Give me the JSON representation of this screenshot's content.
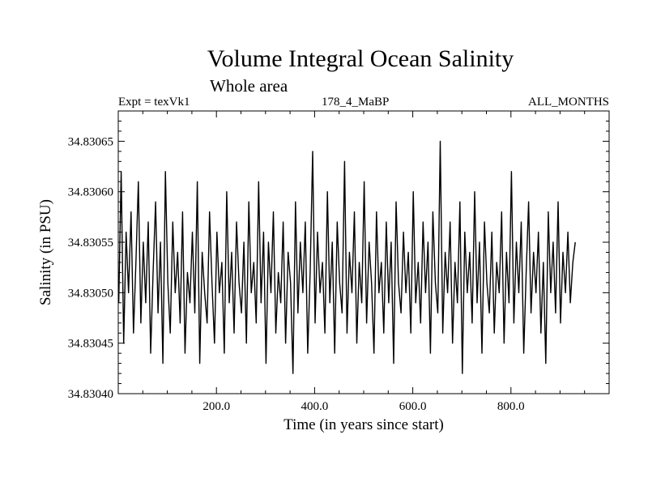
{
  "header": {
    "title": "Volume Integral Ocean Salinity",
    "subtitle": "Whole area",
    "experiment": "Expt = texVk1",
    "run": "178_4_MaBP",
    "period": "ALL_MONTHS"
  },
  "chart_data": {
    "type": "line",
    "title": "Volume Integral Ocean Salinity",
    "subtitle": "Whole area",
    "xlabel": "Time (in years since start)",
    "ylabel": "Salinity (in PSU)",
    "xlim": [
      0,
      1000
    ],
    "ylim": [
      34.8304,
      34.83068
    ],
    "x_ticks": [
      200,
      400,
      600,
      800
    ],
    "x_tick_labels": [
      "200.0",
      "400.0",
      "600.0",
      "800.0"
    ],
    "y_ticks": [
      34.8304,
      34.83045,
      34.8305,
      34.83055,
      34.8306,
      34.83065
    ],
    "y_tick_labels": [
      "34.83040",
      "34.83045",
      "34.83050",
      "34.83055",
      "34.83060",
      "34.83065"
    ],
    "grid": false,
    "series": [
      {
        "name": "Salinity",
        "x_start": 1,
        "x_step": 5,
        "values": [
          34.83049,
          34.83062,
          34.83045,
          34.83056,
          34.8305,
          34.83058,
          34.83046,
          34.83053,
          34.83061,
          34.83047,
          34.83055,
          34.83049,
          34.83057,
          34.83044,
          34.83052,
          34.83059,
          34.83048,
          34.83055,
          34.83043,
          34.83062,
          34.83051,
          34.83046,
          34.83057,
          34.8305,
          34.83054,
          34.83047,
          34.83058,
          34.83044,
          34.83052,
          34.83049,
          34.83056,
          34.83048,
          34.83061,
          34.83043,
          34.83054,
          34.8305,
          34.83047,
          34.83058,
          34.83051,
          34.83045,
          34.83056,
          34.8305,
          34.83053,
          34.83044,
          34.8306,
          34.83049,
          34.83054,
          34.83046,
          34.83057,
          34.83051,
          34.83048,
          34.83055,
          34.83045,
          34.83059,
          34.8305,
          34.83053,
          34.83047,
          34.83061,
          34.83049,
          34.83056,
          34.83043,
          34.83055,
          34.8305,
          34.83058,
          34.83046,
          34.83052,
          34.83049,
          34.83057,
          34.83045,
          34.83054,
          34.83051,
          34.83042,
          34.83059,
          34.83048,
          34.83055,
          34.8305,
          34.83057,
          34.83044,
          34.83052,
          34.83064,
          34.83047,
          34.83056,
          34.8305,
          34.83053,
          34.83046,
          34.8306,
          34.83049,
          34.83055,
          34.83044,
          34.83057,
          34.83051,
          34.83048,
          34.83063,
          34.83046,
          34.83054,
          34.8305,
          34.83058,
          34.83045,
          34.83053,
          34.83049,
          34.83061,
          34.83047,
          34.83055,
          34.83051,
          34.83044,
          34.83058,
          34.8305,
          34.83053,
          34.83046,
          34.83057,
          34.83049,
          34.83055,
          34.83043,
          34.83059,
          34.83051,
          34.83048,
          34.83056,
          34.8305,
          34.83054,
          34.83046,
          34.8306,
          34.83049,
          34.83053,
          34.83047,
          34.83057,
          34.8305,
          34.83055,
          34.83044,
          34.83058,
          34.83051,
          34.83048,
          34.83065,
          34.83046,
          34.83054,
          34.8305,
          34.83057,
          34.83045,
          34.83053,
          34.83049,
          34.83059,
          34.83042,
          34.83056,
          34.8305,
          34.83054,
          34.83047,
          34.8306,
          34.83049,
          34.83055,
          34.83044,
          34.83057,
          34.83051,
          34.83048,
          34.83056,
          34.83046,
          34.83053,
          34.8305,
          34.83058,
          34.83045,
          34.83054,
          34.83049,
          34.83062,
          34.83047,
          34.83055,
          34.8305,
          34.83057,
          34.83044,
          34.83052,
          34.83059,
          34.83048,
          34.83054,
          34.8305,
          34.83056,
          34.83046,
          34.83053,
          34.83043,
          34.83058,
          34.8305,
          34.83055,
          34.83048,
          34.83059,
          34.83047,
          34.83054,
          34.8305,
          34.83056,
          34.83049,
          34.83053,
          34.83055
        ]
      }
    ]
  }
}
